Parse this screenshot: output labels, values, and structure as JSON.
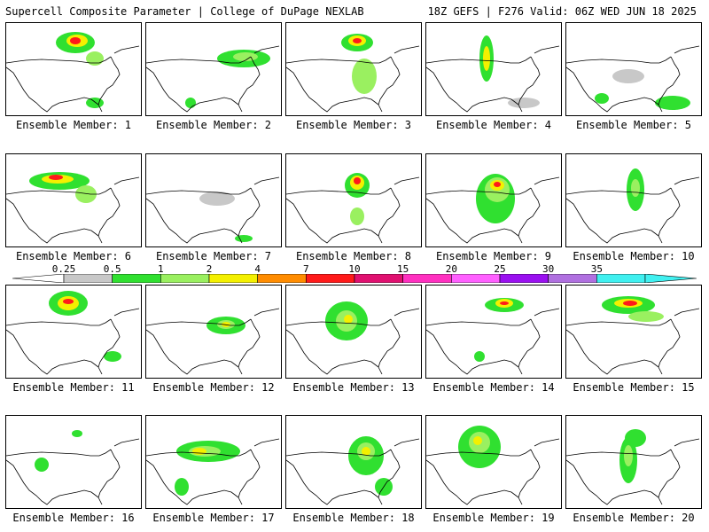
{
  "header": {
    "left_title": "Supercell Composite Parameter | College of DuPage NEXLAB",
    "right_title": "18Z GEFS | F276 Valid: 06Z WED JUN 18 2025"
  },
  "colorbar": {
    "labels": [
      "0.25",
      "0.5",
      "1",
      "2",
      "4",
      "7",
      "10",
      "15",
      "20",
      "25",
      "30",
      "35"
    ],
    "colors": [
      "#c8c8c8",
      "#30e030",
      "#9af060",
      "#f4f000",
      "#ff8c00",
      "#ff1a1a",
      "#e01070",
      "#ff30c0",
      "#ff60ff",
      "#9a10f0",
      "#b070e0",
      "#40f0f0"
    ]
  },
  "panels": [
    {
      "label": "Ensemble Member: 1"
    },
    {
      "label": "Ensemble Member: 2"
    },
    {
      "label": "Ensemble Member: 3"
    },
    {
      "label": "Ensemble Member: 4"
    },
    {
      "label": "Ensemble Member: 5"
    },
    {
      "label": "Ensemble Member: 6"
    },
    {
      "label": "Ensemble Member: 7"
    },
    {
      "label": "Ensemble Member: 8"
    },
    {
      "label": "Ensemble Member: 9"
    },
    {
      "label": "Ensemble Member: 10"
    },
    {
      "label": "Ensemble Member: 11"
    },
    {
      "label": "Ensemble Member: 12"
    },
    {
      "label": "Ensemble Member: 13"
    },
    {
      "label": "Ensemble Member: 14"
    },
    {
      "label": "Ensemble Member: 15"
    },
    {
      "label": "Ensemble Member: 16"
    },
    {
      "label": "Ensemble Member: 17"
    },
    {
      "label": "Ensemble Member: 18"
    },
    {
      "label": "Ensemble Member: 19"
    },
    {
      "label": "Ensemble Member: 20"
    }
  ]
}
